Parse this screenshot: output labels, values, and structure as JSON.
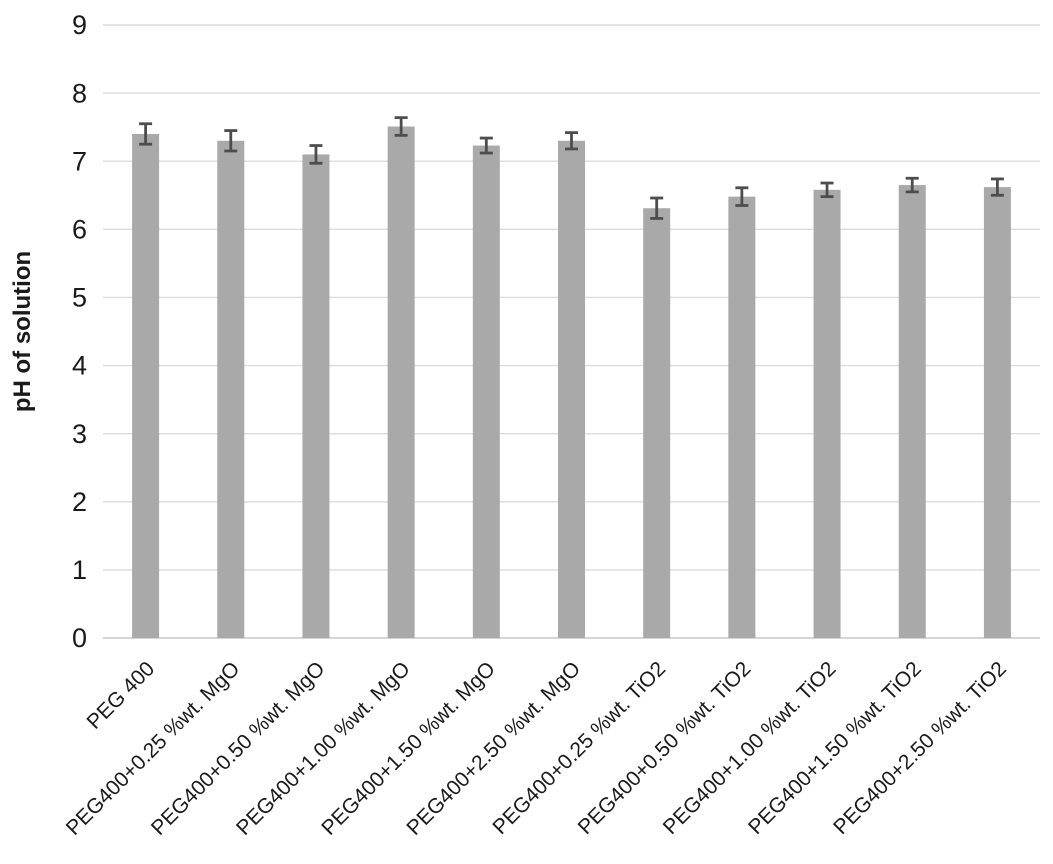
{
  "chart_data": {
    "type": "bar",
    "title": "",
    "xlabel": "",
    "ylabel": "pH of solution",
    "ylim": [
      0,
      9
    ],
    "yticks": [
      0,
      1,
      2,
      3,
      4,
      5,
      6,
      7,
      8,
      9
    ],
    "grid": true,
    "legend_position": "none",
    "x_label_rotation_deg": 45,
    "categories": [
      "PEG 400",
      "PEG400+0.25 %wt. MgO",
      "PEG400+0.50 %wt. MgO",
      "PEG400+1.00 %wt. MgO",
      "PEG400+1.50 %wt. MgO",
      "PEG400+2.50 %wt. MgO",
      "PEG400+0.25 %wt. TiO2",
      "PEG400+0.50 %wt. TiO2",
      "PEG400+1.00 %wt. TiO2",
      "PEG400+1.50 %wt. TiO2",
      "PEG400+2.50 %wt. TiO2"
    ],
    "series": [
      {
        "name": "pH of solution",
        "values": [
          7.4,
          7.3,
          7.1,
          7.51,
          7.23,
          7.3,
          6.31,
          6.48,
          6.58,
          6.65,
          6.62
        ],
        "error_bars": [
          0.15,
          0.15,
          0.13,
          0.13,
          0.11,
          0.12,
          0.15,
          0.13,
          0.1,
          0.1,
          0.12
        ]
      }
    ],
    "colors": {
      "bar": "#a9a9a9",
      "error_bar": "#4d4d4d",
      "gridline": "#dcdcdc",
      "axis_line": "#c8c8c8",
      "text": "#1a1a1a",
      "background": "#ffffff"
    }
  }
}
